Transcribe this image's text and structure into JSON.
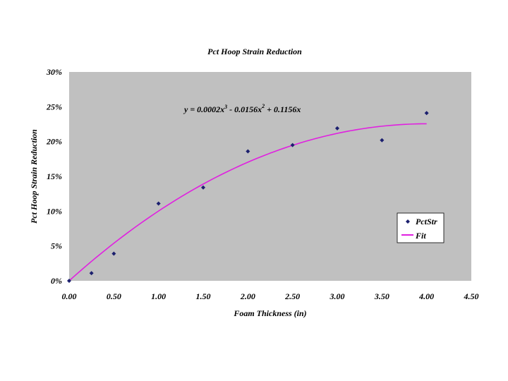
{
  "chart_data": {
    "type": "scatter",
    "title": "Pct Hoop Strain Reduction",
    "xlabel": "Foam Thickness (in)",
    "ylabel": "Pct Hoop Strain Reduction",
    "xlim": [
      0,
      4.5
    ],
    "ylim": [
      0,
      0.3
    ],
    "x_ticks": [
      "0.00",
      "0.50",
      "1.00",
      "1.50",
      "2.00",
      "2.50",
      "3.00",
      "3.50",
      "4.00",
      "4.50"
    ],
    "y_ticks": [
      "0%",
      "5%",
      "10%",
      "15%",
      "20%",
      "25%",
      "30%"
    ],
    "equation": {
      "text": "y = 0.0002x",
      "exp1": "3",
      "part2": " - 0.0156x",
      "exp2": "2",
      "part3": " + 0.1156x"
    },
    "grid": false,
    "legend_position": "right",
    "series": [
      {
        "name": "PctStr",
        "kind": "markers",
        "color": "#1b1f6e",
        "points": [
          [
            0.0,
            0.0
          ],
          [
            0.25,
            0.011
          ],
          [
            0.5,
            0.039
          ],
          [
            1.0,
            0.111
          ],
          [
            1.5,
            0.134
          ],
          [
            2.0,
            0.186
          ],
          [
            2.5,
            0.195
          ],
          [
            3.0,
            0.219
          ],
          [
            3.5,
            0.202
          ],
          [
            4.0,
            0.241
          ]
        ]
      },
      {
        "name": "Fit",
        "kind": "line",
        "color": "#e020e0",
        "coefficients": {
          "a3": 0.0002,
          "a2": -0.0156,
          "a1": 0.1156,
          "a0": 0
        },
        "x_range": [
          0,
          4.0
        ]
      }
    ]
  },
  "colors": {
    "plot_background": "#c0c0c0",
    "page_background": "#ffffff"
  }
}
